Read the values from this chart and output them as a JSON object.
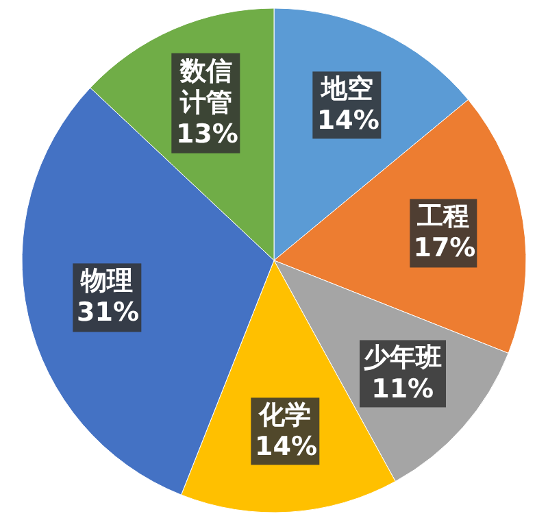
{
  "chart_data": {
    "type": "pie",
    "categories": [
      "地空",
      "工程",
      "少年班",
      "化学",
      "物理",
      "数信计管"
    ],
    "values": [
      14,
      17,
      11,
      14,
      31,
      13
    ],
    "colors": [
      "#5b9bd5",
      "#ed7d31",
      "#a5a5a5",
      "#ffc000",
      "#4472c4",
      "#70ad47"
    ],
    "value_labels": [
      "14%",
      "17%",
      "11%",
      "14%",
      "31%",
      "13%"
    ],
    "legend": false
  }
}
